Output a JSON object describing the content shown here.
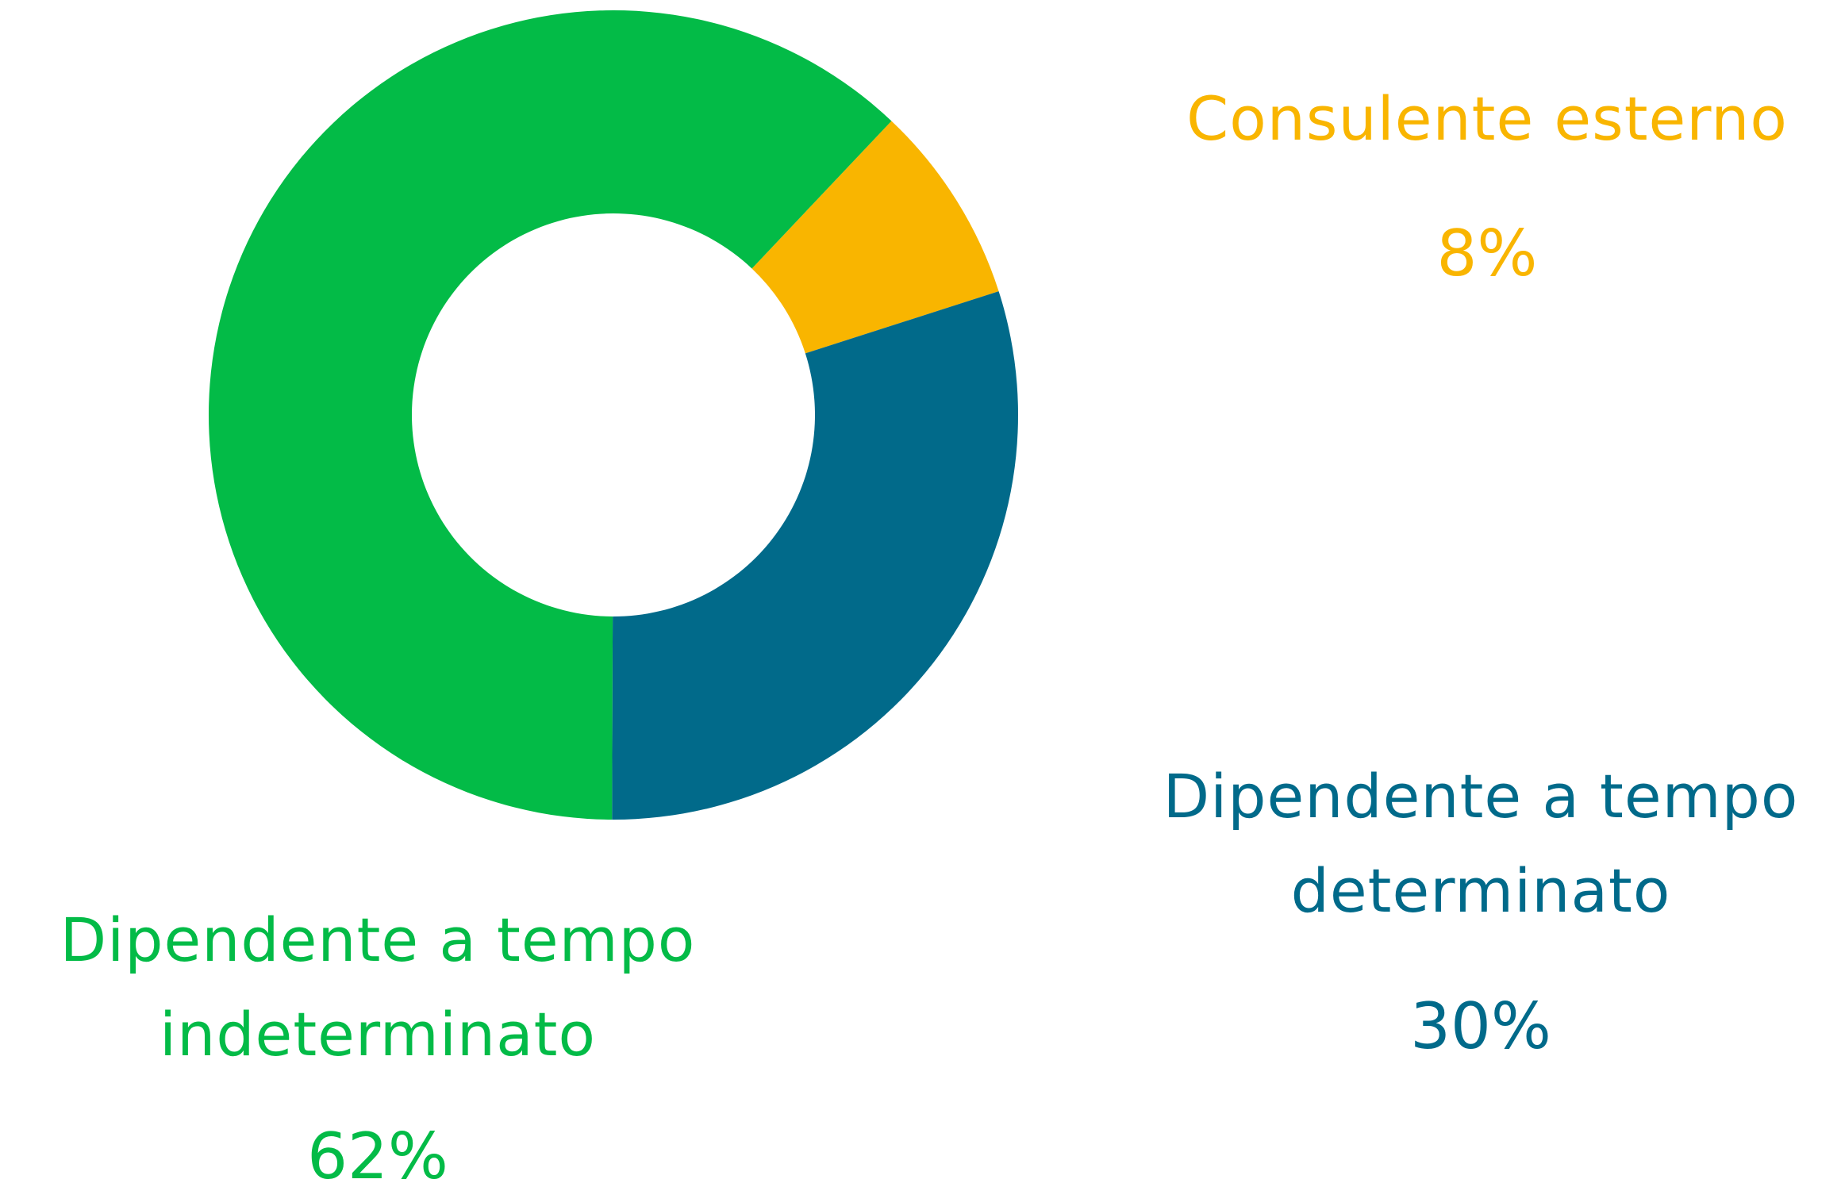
{
  "chart_data": {
    "type": "donut",
    "categories": [
      "Consulente esterno",
      "Dipendente a tempo determinato",
      "Dipendente a tempo indeterminato"
    ],
    "values": [
      8,
      30,
      62
    ],
    "value_labels": [
      "8%",
      "30%",
      "62%"
    ],
    "colors": [
      "#f9b500",
      "#016a8a",
      "#03bb47"
    ]
  }
}
